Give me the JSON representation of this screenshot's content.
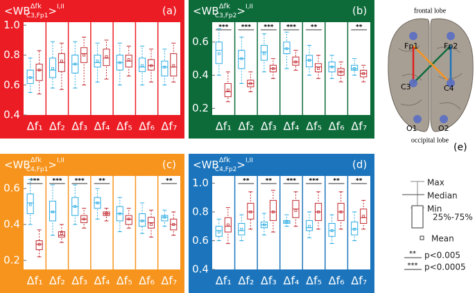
{
  "chart_data": [
    {
      "type": "box",
      "label": "(a)",
      "background": "#ec1c24",
      "title": {
        "open": "<WB",
        "sup": "Δfk",
        "sub": "C3,Fp1",
        "close": ">",
        "sup2": "I,II"
      },
      "categories": [
        "Δf₁",
        "Δf₂",
        "Δf₃",
        "Δf₄",
        "Δf₅",
        "Δf₆",
        "Δf₇"
      ],
      "ylim": [
        0.4,
        1.02
      ],
      "yticks": [
        0.4,
        0.6,
        0.8,
        {
          "value": 1,
          "label": "1.0"
        }
      ],
      "sig": [
        null,
        null,
        null,
        null,
        null,
        null,
        null
      ],
      "series": [
        {
          "color": "#29abe2",
          "boxes": [
            [
              0.55,
              0.61,
              0.65,
              0.7,
              0.78,
              0.65
            ],
            [
              0.58,
              0.65,
              0.7,
              0.78,
              0.89,
              0.71
            ],
            [
              0.58,
              0.68,
              0.74,
              0.8,
              0.89,
              0.74
            ],
            [
              0.62,
              0.72,
              0.75,
              0.8,
              0.88,
              0.76
            ],
            [
              0.6,
              0.7,
              0.75,
              0.8,
              0.88,
              0.75
            ],
            [
              0.6,
              0.69,
              0.72,
              0.78,
              0.86,
              0.73
            ],
            [
              0.6,
              0.66,
              0.72,
              0.76,
              0.84,
              0.72
            ]
          ]
        },
        {
          "color": "#c1272d",
          "boxes": [
            [
              0.54,
              0.63,
              0.7,
              0.74,
              0.83,
              0.7
            ],
            [
              0.57,
              0.69,
              0.75,
              0.81,
              0.88,
              0.76
            ],
            [
              0.6,
              0.75,
              0.81,
              0.85,
              0.92,
              0.8
            ],
            [
              0.64,
              0.73,
              0.78,
              0.84,
              0.9,
              0.79
            ],
            [
              0.66,
              0.72,
              0.76,
              0.8,
              0.86,
              0.77
            ],
            [
              0.62,
              0.7,
              0.73,
              0.77,
              0.84,
              0.73
            ],
            [
              0.62,
              0.66,
              0.72,
              0.81,
              0.88,
              0.73
            ]
          ]
        }
      ]
    },
    {
      "type": "box",
      "label": "(b)",
      "background": "#0d6b3a",
      "title": {
        "open": "<WB",
        "sup": "Δfk",
        "sub": "C3,Fp2",
        "close": ">",
        "sup2": "I,II"
      },
      "categories": [
        "Δf₁",
        "Δf₂",
        "Δf₃",
        "Δf₄",
        "Δf₅",
        "Δf₆",
        "Δf₇"
      ],
      "ylim": [
        0.16,
        0.72
      ],
      "yticks": [
        0.2,
        0.4,
        0.6
      ],
      "sig": [
        "***",
        "***",
        "***",
        "***",
        "**",
        null,
        "**"
      ],
      "series": [
        {
          "color": "#29abe2",
          "boxes": [
            [
              0.4,
              0.47,
              0.55,
              0.6,
              0.68,
              0.53
            ],
            [
              0.35,
              0.44,
              0.5,
              0.55,
              0.63,
              0.5
            ],
            [
              0.42,
              0.49,
              0.54,
              0.58,
              0.65,
              0.53
            ],
            [
              0.44,
              0.53,
              0.56,
              0.6,
              0.66,
              0.56
            ],
            [
              0.4,
              0.45,
              0.49,
              0.52,
              0.58,
              0.49
            ],
            [
              0.38,
              0.42,
              0.45,
              0.48,
              0.52,
              0.45
            ],
            [
              0.4,
              0.43,
              0.44,
              0.46,
              0.5,
              0.44
            ]
          ]
        },
        {
          "color": "#c1272d",
          "boxes": [
            [
              0.24,
              0.27,
              0.3,
              0.35,
              0.42,
              0.31
            ],
            [
              0.3,
              0.33,
              0.35,
              0.37,
              0.42,
              0.35
            ],
            [
              0.38,
              0.42,
              0.44,
              0.46,
              0.5,
              0.44
            ],
            [
              0.43,
              0.46,
              0.48,
              0.51,
              0.55,
              0.48
            ],
            [
              0.38,
              0.42,
              0.45,
              0.47,
              0.52,
              0.44
            ],
            [
              0.36,
              0.4,
              0.42,
              0.44,
              0.48,
              0.42
            ],
            [
              0.36,
              0.39,
              0.41,
              0.43,
              0.46,
              0.41
            ]
          ]
        }
      ]
    },
    {
      "type": "box",
      "label": "(c)",
      "background": "#f7941d",
      "title": {
        "open": "<WB",
        "sup": "Δfk",
        "sub": "C4,Fp1",
        "close": ">",
        "sup2": "I,II"
      },
      "categories": [
        "Δf₁",
        "Δf₂",
        "Δf₃",
        "Δf₄",
        "Δf₅",
        "Δf₆",
        "Δf₇"
      ],
      "ylim": [
        0.15,
        0.67
      ],
      "yticks": [
        0.2,
        0.4,
        0.6
      ],
      "sig": [
        "***",
        "***",
        "***",
        "**",
        null,
        null,
        "**"
      ],
      "series": [
        {
          "color": "#29abe2",
          "boxes": [
            [
              0.4,
              0.46,
              0.52,
              0.57,
              0.65,
              0.51
            ],
            [
              0.34,
              0.42,
              0.47,
              0.53,
              0.62,
              0.47
            ],
            [
              0.4,
              0.45,
              0.5,
              0.55,
              0.62,
              0.5
            ],
            [
              0.43,
              0.49,
              0.52,
              0.55,
              0.6,
              0.52
            ],
            [
              0.36,
              0.42,
              0.46,
              0.5,
              0.55,
              0.46
            ],
            [
              0.35,
              0.39,
              0.42,
              0.46,
              0.52,
              0.42
            ],
            [
              0.39,
              0.42,
              0.44,
              0.45,
              0.48,
              0.44
            ]
          ]
        },
        {
          "color": "#c1272d",
          "boxes": [
            [
              0.22,
              0.26,
              0.29,
              0.31,
              0.37,
              0.29
            ],
            [
              0.3,
              0.33,
              0.34,
              0.36,
              0.4,
              0.35
            ],
            [
              0.38,
              0.41,
              0.43,
              0.45,
              0.49,
              0.43
            ],
            [
              0.42,
              0.45,
              0.46,
              0.47,
              0.49,
              0.46
            ],
            [
              0.38,
              0.4,
              0.43,
              0.45,
              0.49,
              0.43
            ],
            [
              0.33,
              0.38,
              0.41,
              0.44,
              0.48,
              0.4
            ],
            [
              0.34,
              0.37,
              0.4,
              0.43,
              0.47,
              0.4
            ]
          ]
        }
      ]
    },
    {
      "type": "box",
      "label": "(d)",
      "background": "#1c75bc",
      "title": {
        "open": "<WB",
        "sup": "Δfk",
        "sub": "C4,Fp2",
        "close": ">",
        "sup2": "I,II"
      },
      "categories": [
        "Δf₁",
        "Δf₂",
        "Δf₃",
        "Δf₄",
        "Δf₅",
        "Δf₆",
        "Δf₇"
      ],
      "ylim": [
        0.4,
        1.05
      ],
      "yticks": [
        0.4,
        0.6,
        0.8,
        {
          "value": 1,
          "label": "1.0"
        }
      ],
      "sig": [
        null,
        "**",
        "**",
        "***",
        "***",
        "**",
        "**"
      ],
      "series": [
        {
          "color": "#29abe2",
          "boxes": [
            [
              0.6,
              0.63,
              0.67,
              0.7,
              0.75,
              0.66
            ],
            [
              0.6,
              0.64,
              0.67,
              0.72,
              0.78,
              0.68
            ],
            [
              0.64,
              0.69,
              0.71,
              0.73,
              0.79,
              0.71
            ],
            [
              0.7,
              0.72,
              0.73,
              0.74,
              0.78,
              0.73
            ],
            [
              0.62,
              0.67,
              0.69,
              0.74,
              0.8,
              0.7
            ],
            [
              0.58,
              0.63,
              0.67,
              0.72,
              0.78,
              0.67
            ],
            [
              0.6,
              0.64,
              0.68,
              0.73,
              0.8,
              0.68
            ]
          ]
        },
        {
          "color": "#c1272d",
          "boxes": [
            [
              0.58,
              0.66,
              0.7,
              0.76,
              0.83,
              0.71
            ],
            [
              0.68,
              0.75,
              0.8,
              0.86,
              0.94,
              0.8
            ],
            [
              0.66,
              0.74,
              0.8,
              0.88,
              0.95,
              0.8
            ],
            [
              0.7,
              0.76,
              0.82,
              0.88,
              0.94,
              0.81
            ],
            [
              0.68,
              0.74,
              0.8,
              0.86,
              0.94,
              0.8
            ],
            [
              0.68,
              0.74,
              0.8,
              0.86,
              0.94,
              0.8
            ],
            [
              0.68,
              0.72,
              0.76,
              0.82,
              0.88,
              0.77
            ]
          ]
        }
      ]
    }
  ],
  "brain": {
    "top": "frontal lobe",
    "bottom": "occipital lobe",
    "label": "(e)",
    "electrodes": [
      "Fp1",
      "Fp2",
      "C3",
      "C4",
      "O1",
      "O2"
    ]
  },
  "legend": {
    "max": "Max",
    "median": "Median",
    "min": "Min",
    "box": "25%-75%",
    "mean": "Mean",
    "sig2": "**",
    "p2": "p<0.005",
    "sig3": "***",
    "p3": "p<0.0005"
  }
}
